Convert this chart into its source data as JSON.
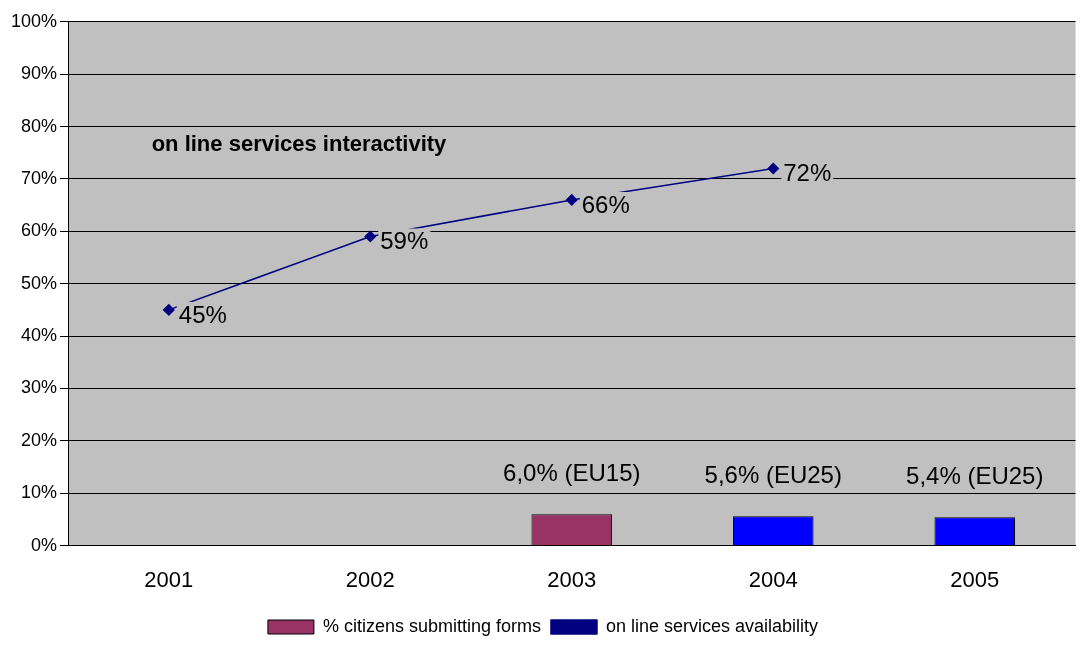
{
  "chart_data": {
    "type": "bar",
    "categories": [
      "2001",
      "2002",
      "2003",
      "2004",
      "2005"
    ],
    "series": [
      {
        "name": "% citizens submitting forms",
        "color": "#993366",
        "colors": [
          null,
          null,
          "#993366",
          "#0000ff",
          "#0000ff"
        ],
        "values": [
          null,
          null,
          6.0,
          5.6,
          5.4
        ],
        "value_labels": [
          null,
          null,
          "6,0% (EU15)",
          "5,6% (EU25)",
          "5,4% (EU25)"
        ]
      },
      {
        "type": "line",
        "name": "on line services availability",
        "color": "#000080",
        "values": [
          45,
          59,
          66,
          72,
          null
        ],
        "value_labels": [
          "45%",
          "59%",
          "66%",
          "72%",
          null
        ]
      }
    ],
    "ylim": [
      0,
      100
    ],
    "yticks": [
      {
        "value": 0,
        "label": "0%"
      },
      {
        "value": 10,
        "label": "10%"
      },
      {
        "value": 20,
        "label": "20%"
      },
      {
        "value": 30,
        "label": "30%"
      },
      {
        "value": 40,
        "label": "40%"
      },
      {
        "value": 50,
        "label": "50%"
      },
      {
        "value": 60,
        "label": "60%"
      },
      {
        "value": 70,
        "label": "70%"
      },
      {
        "value": 80,
        "label": "80%"
      },
      {
        "value": 90,
        "label": "90%"
      },
      {
        "value": 100,
        "label": "100%"
      }
    ],
    "annotations": [
      "on line services interactivity"
    ],
    "grid": "y",
    "legend": "bottom",
    "marker": "diamond",
    "line_style": "solid"
  }
}
